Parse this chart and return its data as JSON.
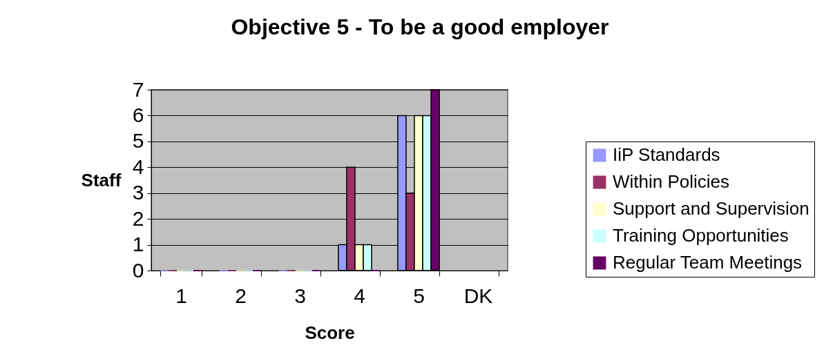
{
  "chart_data": {
    "type": "bar",
    "title": "Objective 5 - To be a good employer",
    "xlabel": "Score",
    "ylabel": "Staff",
    "categories": [
      "1",
      "2",
      "3",
      "4",
      "5",
      "DK"
    ],
    "series": [
      {
        "name": "IiP Standards",
        "color": "#9999ff",
        "values": [
          0,
          0,
          0,
          1,
          6,
          null
        ]
      },
      {
        "name": "Within Policies",
        "color": "#993366",
        "values": [
          0,
          0,
          0,
          4,
          3,
          null
        ]
      },
      {
        "name": "Support and Supervision",
        "color": "#ffffcc",
        "values": [
          0,
          0,
          0,
          1,
          6,
          null
        ]
      },
      {
        "name": "Training Opportunities",
        "color": "#ccffff",
        "values": [
          0,
          0,
          0,
          1,
          6,
          null
        ]
      },
      {
        "name": "Regular Team Meetings",
        "color": "#660066",
        "values": [
          0,
          0,
          0,
          0,
          7,
          null
        ]
      }
    ],
    "ylim": [
      0,
      7
    ],
    "yticks": [
      0,
      1,
      2,
      3,
      4,
      5,
      6,
      7
    ],
    "grid": "y",
    "legend": "right"
  }
}
